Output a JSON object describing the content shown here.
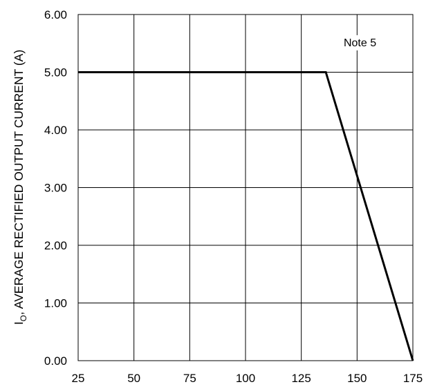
{
  "chart_data": {
    "type": "line",
    "title": "",
    "xlabel": "",
    "ylabel": {
      "symbol": "I",
      "subscript": "O",
      "text": ", AVERAGE RECTIFIED OUTPUT CURRENT (A)"
    },
    "xlim": [
      25,
      175
    ],
    "ylim": [
      0,
      6
    ],
    "x_ticks": [
      "25",
      "50",
      "75",
      "100",
      "125",
      "150",
      "175"
    ],
    "y_ticks": [
      "0.00",
      "1.00",
      "2.00",
      "3.00",
      "4.00",
      "5.00",
      "6.00"
    ],
    "grid": true,
    "series": [
      {
        "x": [
          25,
          136,
          175
        ],
        "y": [
          5.0,
          5.0,
          0.0
        ]
      }
    ],
    "annotations": [
      {
        "text": "Note 5",
        "x": 144,
        "y": 5.45
      }
    ],
    "colors": {
      "line": "#000000",
      "grid": "#000000",
      "background": "#ffffff"
    }
  }
}
